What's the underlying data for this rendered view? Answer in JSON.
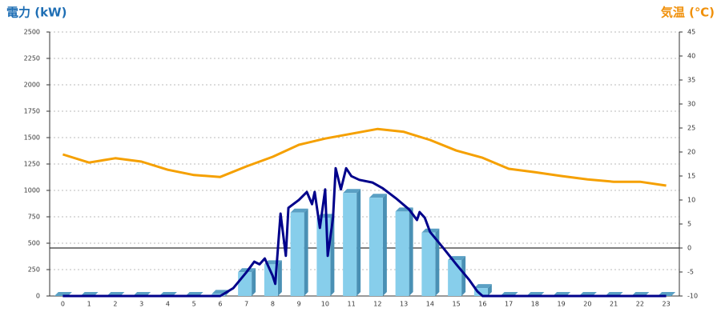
{
  "chart_data": {
    "type": "bar",
    "title": "電力 (kW)",
    "title_color": "#1e6eb4",
    "y2_title": "気温 (℃)",
    "y2_title_color": "#f0900a",
    "categories": [
      "0",
      "1",
      "2",
      "3",
      "4",
      "5",
      "6",
      "7",
      "8",
      "9",
      "10",
      "11",
      "12",
      "13",
      "14",
      "15",
      "16",
      "17",
      "18",
      "19",
      "20",
      "21",
      "22",
      "23"
    ],
    "ylim": [
      0,
      2500
    ],
    "yticks": [
      0,
      250,
      500,
      750,
      1000,
      1250,
      1500,
      1750,
      2000,
      2250,
      2500
    ],
    "y2lim": [
      -10,
      45
    ],
    "y2ticks": [
      -10,
      -5,
      0,
      5,
      10,
      15,
      20,
      25,
      30,
      35,
      40,
      45
    ],
    "grid": true,
    "series": [
      {
        "type": "bar",
        "color": "#87ceeb",
        "values": [
          0,
          0,
          0,
          0,
          0,
          0,
          20,
          225,
          300,
          790,
          740,
          975,
          930,
          800,
          600,
          340,
          75,
          0,
          0,
          0,
          0,
          0,
          0,
          0
        ]
      },
      {
        "type": "line",
        "color": "#00008b",
        "x": [
          0,
          6,
          6.5,
          7,
          7.3,
          7.5,
          7.7,
          8,
          8.1,
          8.3,
          8.5,
          8.6,
          9,
          9.3,
          9.5,
          9.6,
          9.8,
          10,
          10.1,
          10.3,
          10.4,
          10.6,
          10.8,
          11,
          11.3,
          11.8,
          12.2,
          12.7,
          13.2,
          13.5,
          13.6,
          13.8,
          14,
          14.5,
          15,
          15.5,
          15.8,
          16,
          23
        ],
        "values": [
          0,
          0,
          75,
          225,
          325,
          300,
          355,
          190,
          115,
          780,
          380,
          835,
          910,
          985,
          870,
          985,
          645,
          1010,
          380,
          740,
          1210,
          1010,
          1210,
          1135,
          1100,
          1075,
          1020,
          925,
          820,
          720,
          795,
          740,
          605,
          455,
          300,
          150,
          45,
          0,
          0
        ]
      },
      {
        "type": "line",
        "axis": "y2",
        "color": "#f5a000",
        "values": [
          19.5,
          17.8,
          18.7,
          18,
          16.3,
          15.2,
          14.8,
          17,
          19,
          21.5,
          22.8,
          23.8,
          24.8,
          24.2,
          22.5,
          20.3,
          18.8,
          16.5,
          15.8,
          15,
          14.3,
          13.8,
          13.8,
          13
        ]
      }
    ]
  }
}
